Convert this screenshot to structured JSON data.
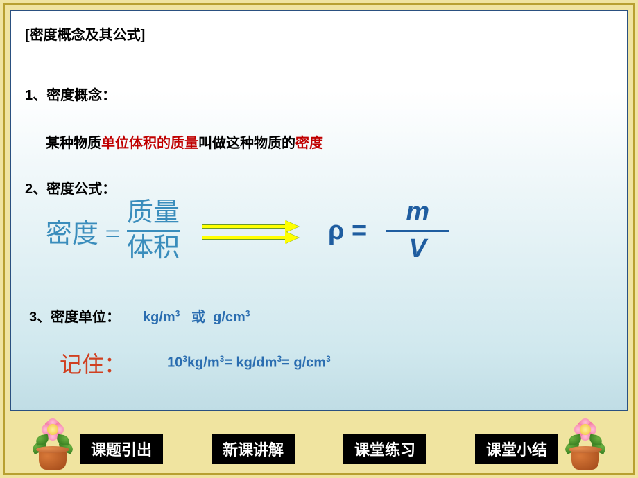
{
  "colors": {
    "frame_bg": "#f0e4a0",
    "frame_border": "#b8a030",
    "slide_border": "#2a5080",
    "slide_grad_top": "#ffffff",
    "slide_grad_bottom": "#c0dde5",
    "text_black": "#000000",
    "text_red": "#c00000",
    "formula_cn": "#3a8dbc",
    "formula_sym": "#1f5da0",
    "unit_blue": "#2a6db0",
    "remember_red": "#d04020",
    "arrow_fill": "#ffff00",
    "arrow_outline": "#6a9a2a",
    "btn_bg": "#000000",
    "btn_fg": "#ffffff"
  },
  "header": {
    "title": "[密度概念及其公式]"
  },
  "point1": {
    "label": "1、密度概念：",
    "defn_pre": "某种物质",
    "defn_em1": "单位体积的质量",
    "defn_mid": "叫做这种物质的",
    "defn_em2": "密度"
  },
  "point2": {
    "label": "2、密度公式：",
    "lhs_cn": "密度 =",
    "num_cn": "质量",
    "den_cn": "体积",
    "lhs_sym": "ρ =",
    "num_sym": "m",
    "den_sym": "V"
  },
  "point3": {
    "label": "3、密度单位：",
    "units_html": "kg/m<sup>3</sup>&nbsp;&nbsp;&nbsp;或&nbsp;&nbsp;g/cm<sup>3</sup>"
  },
  "remember": {
    "label": "记住：",
    "conv_html": "10<sup>3</sup>kg/m<sup>3</sup>= kg/dm<sup>3</sup>= g/cm<sup>3</sup>"
  },
  "nav": {
    "b1": "课题引出",
    "b2": "新课讲解",
    "b3": "课堂练习",
    "b4": "课堂小结"
  }
}
